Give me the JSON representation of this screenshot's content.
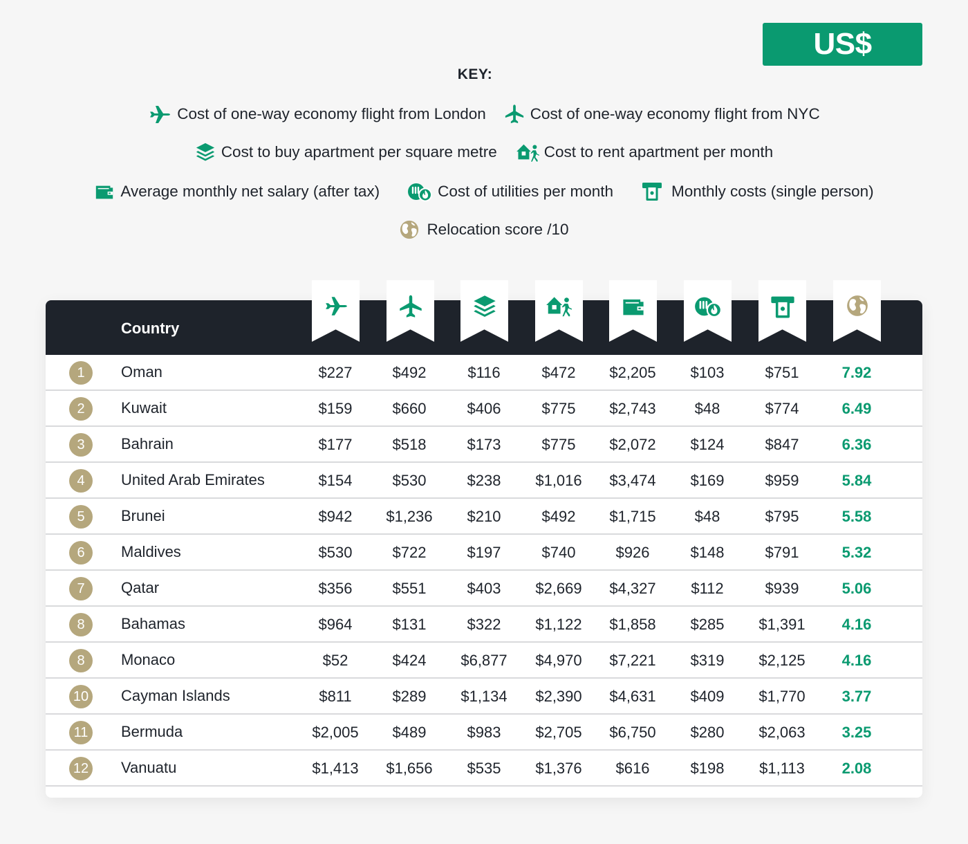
{
  "currency": "US$",
  "key": {
    "title": "KEY:",
    "items": {
      "flight_london": "Cost of one-way economy flight from London",
      "flight_nyc": "Cost of one-way economy flight from NYC",
      "buy_apartment": "Cost to buy apartment per square metre",
      "rent_apartment": "Cost to rent apartment per month",
      "salary": "Average monthly net salary (after tax)",
      "utilities": "Cost of utilities per month",
      "monthly_costs": "Monthly costs (single person)",
      "relocation_score": "Relocation score /10"
    }
  },
  "colors": {
    "accent_green": "#0a9a70",
    "header_dark": "#1e232b",
    "rank_gold": "#b5a77d",
    "background": "#f6f6f6"
  },
  "icons": [
    "plane-side-icon",
    "plane-top-icon",
    "layers-icon",
    "house-walker-icon",
    "wallet-icon",
    "utilities-icon",
    "atm-icon",
    "globe-icon"
  ],
  "table": {
    "country_header": "Country",
    "rows": [
      {
        "rank": "1",
        "country": "Oman",
        "values": [
          "$227",
          "$492",
          "$116",
          "$472",
          "$2,205",
          "$103",
          "$751"
        ],
        "score": "7.92"
      },
      {
        "rank": "2",
        "country": "Kuwait",
        "values": [
          "$159",
          "$660",
          "$406",
          "$775",
          "$2,743",
          "$48",
          "$774"
        ],
        "score": "6.49"
      },
      {
        "rank": "3",
        "country": "Bahrain",
        "values": [
          "$177",
          "$518",
          "$173",
          "$775",
          "$2,072",
          "$124",
          "$847"
        ],
        "score": "6.36"
      },
      {
        "rank": "4",
        "country": "United Arab Emirates",
        "values": [
          "$154",
          "$530",
          "$238",
          "$1,016",
          "$3,474",
          "$169",
          "$959"
        ],
        "score": "5.84"
      },
      {
        "rank": "5",
        "country": "Brunei",
        "values": [
          "$942",
          "$1,236",
          "$210",
          "$492",
          "$1,715",
          "$48",
          "$795"
        ],
        "score": "5.58"
      },
      {
        "rank": "6",
        "country": "Maldives",
        "values": [
          "$530",
          "$722",
          "$197",
          "$740",
          "$926",
          "$148",
          "$791"
        ],
        "score": "5.32"
      },
      {
        "rank": "7",
        "country": "Qatar",
        "values": [
          "$356",
          "$551",
          "$403",
          "$2,669",
          "$4,327",
          "$112",
          "$939"
        ],
        "score": "5.06"
      },
      {
        "rank": "8",
        "country": "Bahamas",
        "values": [
          "$964",
          "$131",
          "$322",
          "$1,122",
          "$1,858",
          "$285",
          "$1,391"
        ],
        "score": "4.16"
      },
      {
        "rank": "8",
        "country": "Monaco",
        "values": [
          "$52",
          "$424",
          "$6,877",
          "$4,970",
          "$7,221",
          "$319",
          "$2,125"
        ],
        "score": "4.16"
      },
      {
        "rank": "10",
        "country": "Cayman Islands",
        "values": [
          "$811",
          "$289",
          "$1,134",
          "$2,390",
          "$4,631",
          "$409",
          "$1,770"
        ],
        "score": "3.77"
      },
      {
        "rank": "11",
        "country": "Bermuda",
        "values": [
          "$2,005",
          "$489",
          "$983",
          "$2,705",
          "$6,750",
          "$280",
          "$2,063"
        ],
        "score": "3.25"
      },
      {
        "rank": "12",
        "country": "Vanuatu",
        "values": [
          "$1,413",
          "$1,656",
          "$535",
          "$1,376",
          "$616",
          "$198",
          "$1,113"
        ],
        "score": "2.08"
      }
    ]
  }
}
